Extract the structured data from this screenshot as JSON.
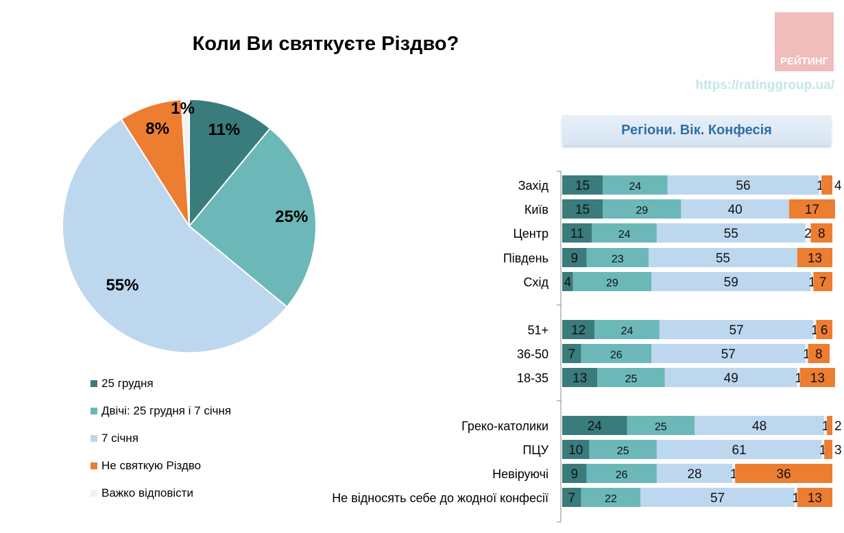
{
  "title": "Коли Ви святкуєте Різдво?",
  "logo": {
    "text": "РЕЙТИНГ",
    "url": "https://ratinggroup.ua/"
  },
  "colors": [
    "#3a7b7b",
    "#6cb8b8",
    "#bdd7ee",
    "#ed7d31",
    "#f2f2f2"
  ],
  "chart_data": [
    {
      "type": "pie",
      "title": "Коли Ви святкуєте Різдво?",
      "labels": [
        "25 грудня",
        "Двічі: 25 грудня і 7 січня",
        "7 січня",
        "Не святкую Різдво",
        "Важко відповісти"
      ],
      "values": [
        11,
        25,
        55,
        8,
        1
      ],
      "data_labels": [
        "11%",
        "25%",
        "55%",
        "8%",
        "1%"
      ],
      "legend": "bottom"
    },
    {
      "type": "bar",
      "stacked": true,
      "orientation": "horizontal",
      "title": "Регіони. Вік. Конфесія",
      "categories": [
        "Захід",
        "Київ",
        "Центр",
        "Південь",
        "Схід",
        "51+",
        "36-50",
        "18-35",
        "Греко-католики",
        "ПЦУ",
        "Невіруючі",
        "Не відносять себе до жодної конфесії"
      ],
      "groups": [
        [
          0,
          1,
          2,
          3,
          4
        ],
        [
          5,
          6,
          7
        ],
        [
          8,
          9,
          10,
          11
        ]
      ],
      "series": [
        {
          "name": "25 грудня",
          "values": [
            15,
            15,
            11,
            9,
            4,
            12,
            7,
            13,
            24,
            10,
            9,
            7
          ]
        },
        {
          "name": "Двічі: 25 грудня і 7 січня",
          "values": [
            24,
            29,
            24,
            23,
            29,
            24,
            26,
            25,
            25,
            25,
            26,
            22
          ]
        },
        {
          "name": "7 січня",
          "values": [
            56,
            40,
            55,
            55,
            59,
            57,
            57,
            49,
            48,
            61,
            28,
            57
          ]
        },
        {
          "name": "Важко відповісти",
          "values": [
            1,
            null,
            2,
            null,
            1,
            1,
            1,
            1,
            1,
            1,
            1,
            1
          ]
        },
        {
          "name": "Не святкую Різдво",
          "values": [
            4,
            17,
            8,
            13,
            7,
            6,
            8,
            13,
            2,
            3,
            36,
            13
          ]
        }
      ]
    }
  ]
}
